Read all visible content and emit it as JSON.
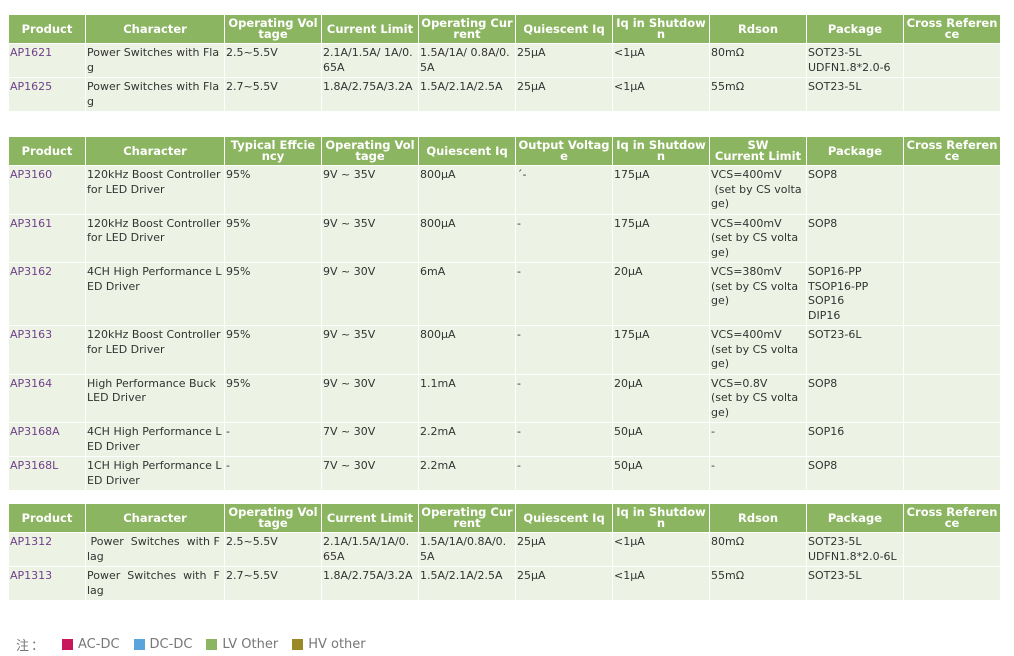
{
  "tables": [
    {
      "headers": [
        "Product",
        "Character",
        "Operating Voltage",
        "Current Limit",
        "Operating Current",
        "Quiescent Iq",
        "Iq in Shutdown",
        "Rdson",
        "Package",
        "Cross Reference"
      ],
      "rows": [
        [
          "AP1621",
          "Power Switches with Flag",
          "2.5~5.5V",
          "2.1A/1.5A/ 1A/0.65A",
          "1.5A/1A/ 0.8A/0.5A",
          "25μA",
          "<1μA",
          "80mΩ",
          "SOT23-5L\nUDFN1.8*2.0-6",
          ""
        ],
        [
          "AP1625",
          "Power Switches with Flag",
          "2.7~5.5V",
          "1.8A/2.75A/3.2A",
          "1.5A/2.1A/2.5A",
          "25μA",
          "<1μA",
          "55mΩ",
          "SOT23-5L",
          ""
        ]
      ]
    },
    {
      "headers": [
        "Product",
        "Character",
        "Typical Effciency",
        "Operating Voltage",
        "Quiescent Iq",
        "Output Voltage",
        "Iq in Shutdown",
        "SW\nCurrent Limit",
        "Package",
        "Cross Reference"
      ],
      "rows": [
        [
          "AP3160",
          "120kHz Boost Controller for LED Driver",
          "95%",
          "9V ~ 35V",
          "800μA",
          "´-",
          "175μA",
          "VCS=400mV\n (set by CS voltage)",
          "SOP8",
          ""
        ],
        [
          "AP3161",
          "120kHz Boost Controller  for LED Driver",
          "95%",
          "9V ~ 35V",
          "800μA",
          "-",
          "175μA",
          "VCS=400mV\n(set by CS voltage)",
          "SOP8",
          ""
        ],
        [
          "AP3162",
          "4CH High Performance LED Driver",
          "95%",
          "9V ~ 30V",
          "6mA",
          "-",
          "20μA",
          "VCS=380mV\n(set by CS voltage)",
          "SOP16-PP\nTSOP16-PP\nSOP16\nDIP16",
          ""
        ],
        [
          "AP3163",
          "120kHz Boost Controller\nfor LED Driver",
          "95%",
          "9V ~ 35V",
          "800μA",
          "-",
          "175μA",
          "VCS=400mV\n(set by CS voltage)",
          "SOT23-6L",
          ""
        ],
        [
          "AP3164",
          "High Performance Buck LED Driver",
          "95%",
          "9V ~ 30V",
          "1.1mA",
          "-",
          "20μA",
          "VCS=0.8V\n(set by CS voltage)",
          "SOP8",
          ""
        ],
        [
          "AP3168A",
          "4CH High Performance LED Driver",
          "-",
          "7V ~ 30V",
          "2.2mA",
          "-",
          "50μA",
          "-",
          "SOP16",
          ""
        ],
        [
          "AP3168L",
          "1CH High Performance LED Driver",
          "-",
          "7V ~ 30V",
          "2.2mA",
          "-",
          "50μA",
          "-",
          "SOP8",
          ""
        ]
      ]
    },
    {
      "headers": [
        "Product",
        "Character",
        "Operating Voltage",
        "Current Limit",
        "Operating Current",
        "Quiescent Iq",
        "Iq in Shutdown",
        "Rdson",
        "Package",
        "Cross Reference"
      ],
      "rows": [
        [
          "AP1312",
          " Power  Switches  with Flag",
          "2.5~5.5V",
          "2.1A/1.5A/1A/0.65A",
          "1.5A/1A/0.8A/0.5A",
          "25μA",
          "<1μA",
          "80mΩ",
          "SOT23-5L\nUDFN1.8*2.0-6L",
          ""
        ],
        [
          "AP1313",
          "Power  Switches  with  Flag",
          "2.7~5.5V",
          "1.8A/2.75A/3.2A",
          "1.5A/2.1A/2.5A",
          "25μA",
          "<1μA",
          "55mΩ",
          "SOT23-5L",
          ""
        ]
      ]
    }
  ],
  "legend": {
    "note": "注：",
    "items": [
      {
        "label": "AC-DC",
        "color": "#c8175a"
      },
      {
        "label": "DC-DC",
        "color": "#5aa4dc"
      },
      {
        "label": "LV Other",
        "color": "#8cb561"
      },
      {
        "label": "HV other",
        "color": "#9a8a26"
      }
    ]
  }
}
